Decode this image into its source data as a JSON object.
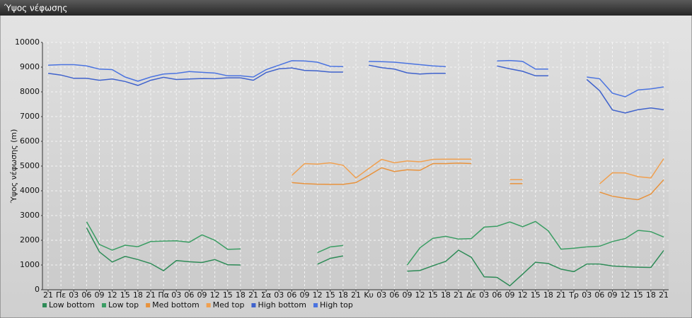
{
  "chart_data": {
    "type": "line",
    "title": "Ύψος νέφωσης",
    "y_label": "Ύψος νέφωσης (m)",
    "categories": [
      "21",
      "Πε",
      "03",
      "06",
      "09",
      "12",
      "15",
      "18",
      "21",
      "Πα",
      "03",
      "06",
      "09",
      "12",
      "15",
      "18",
      "21",
      "Σα",
      "03",
      "06",
      "09",
      "12",
      "15",
      "18",
      "21",
      "Κυ",
      "03",
      "06",
      "09",
      "12",
      "15",
      "18",
      "21",
      "Δε",
      "03",
      "06",
      "09",
      "12",
      "15",
      "18",
      "21",
      "Τρ",
      "03",
      "06",
      "09",
      "12",
      "15",
      "18",
      "21"
    ],
    "ylim": [
      0,
      10000
    ],
    "yticks": [
      0,
      1000,
      2000,
      3000,
      4000,
      5000,
      6000,
      7000,
      8000,
      9000,
      10000
    ],
    "grid": true,
    "legend": "bottom-left",
    "series": [
      {
        "name": "Low bottom",
        "color": "#2e8b57",
        "values": [
          null,
          null,
          null,
          2500,
          1530,
          1120,
          1350,
          1220,
          1060,
          770,
          1180,
          1130,
          1100,
          1220,
          1010,
          1000,
          null,
          null,
          null,
          null,
          null,
          1030,
          1270,
          1370,
          null,
          null,
          null,
          null,
          750,
          780,
          970,
          1150,
          1600,
          1310,
          520,
          500,
          160,
          630,
          1110,
          1060,
          830,
          730,
          1040,
          1040,
          960,
          930,
          910,
          900,
          1590
        ]
      },
      {
        "name": "Low top",
        "color": "#3a9d63",
        "values": [
          null,
          null,
          null,
          2750,
          1830,
          1600,
          1800,
          1740,
          1950,
          1970,
          1980,
          1920,
          2220,
          2000,
          1630,
          1650,
          null,
          null,
          null,
          null,
          null,
          1500,
          1730,
          1790,
          null,
          null,
          null,
          null,
          1000,
          1700,
          2080,
          2160,
          2050,
          2070,
          2530,
          2570,
          2740,
          2550,
          2760,
          2380,
          1640,
          1680,
          1730,
          1760,
          1950,
          2070,
          2400,
          2350,
          2130
        ]
      },
      {
        "name": "Med bottom",
        "color": "#e8923c",
        "values": [
          null,
          null,
          null,
          null,
          null,
          null,
          null,
          null,
          null,
          null,
          null,
          null,
          null,
          null,
          null,
          null,
          null,
          null,
          null,
          4330,
          4290,
          4270,
          4260,
          4260,
          4330,
          4620,
          4930,
          4780,
          4850,
          4830,
          5100,
          5100,
          5120,
          5100,
          null,
          null,
          4290,
          4290,
          null,
          null,
          null,
          null,
          null,
          3950,
          3780,
          3700,
          3640,
          3870,
          4450
        ]
      },
      {
        "name": "Med top",
        "color": "#f0a050",
        "values": [
          null,
          null,
          null,
          null,
          null,
          null,
          null,
          null,
          null,
          null,
          null,
          null,
          null,
          null,
          null,
          null,
          null,
          null,
          null,
          4620,
          5100,
          5080,
          5130,
          5030,
          4520,
          4900,
          5270,
          5130,
          5210,
          5170,
          5270,
          5280,
          5280,
          5280,
          null,
          null,
          4450,
          4450,
          null,
          null,
          null,
          null,
          null,
          4280,
          4730,
          4720,
          4570,
          4520,
          5300
        ]
      },
      {
        "name": "High bottom",
        "color": "#3f62cc",
        "values": [
          8750,
          8680,
          8550,
          8550,
          8470,
          8520,
          8420,
          8260,
          8470,
          8590,
          8500,
          8520,
          8540,
          8530,
          8570,
          8570,
          8470,
          8780,
          8930,
          8970,
          8870,
          8850,
          8800,
          8800,
          null,
          9080,
          8980,
          8920,
          8770,
          8720,
          8750,
          8750,
          null,
          null,
          null,
          9050,
          8930,
          8830,
          8650,
          8650,
          null,
          null,
          8500,
          8050,
          7270,
          7150,
          7280,
          7350,
          7280
        ]
      },
      {
        "name": "High top",
        "color": "#4a73e0",
        "values": [
          9080,
          9100,
          9100,
          9050,
          8920,
          8900,
          8600,
          8430,
          8600,
          8720,
          8750,
          8820,
          8790,
          8760,
          8650,
          8650,
          8600,
          8900,
          9080,
          9260,
          9250,
          9200,
          9030,
          9020,
          null,
          9230,
          9220,
          9200,
          9150,
          9100,
          9050,
          9020,
          null,
          null,
          null,
          9250,
          9270,
          9230,
          8920,
          8920,
          null,
          null,
          8600,
          8530,
          7950,
          7800,
          8080,
          8120,
          8200
        ]
      }
    ]
  }
}
